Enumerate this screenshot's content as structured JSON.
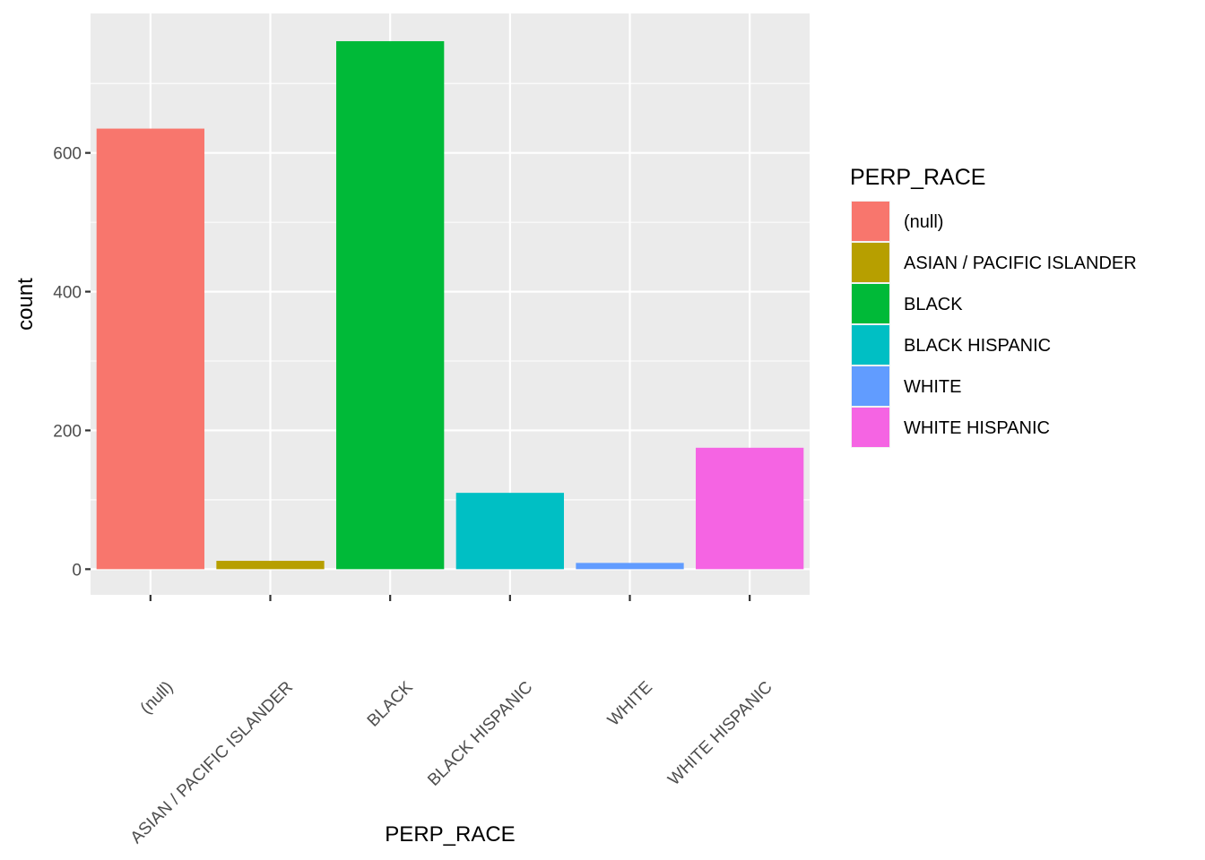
{
  "chart_data": {
    "type": "bar",
    "title": "",
    "xlabel": "PERP_RACE",
    "ylabel": "count",
    "categories": [
      "(null)",
      "ASIAN / PACIFIC ISLANDER",
      "BLACK",
      "BLACK HISPANIC",
      "WHITE",
      "WHITE HISPANIC"
    ],
    "values": [
      635,
      12,
      761,
      110,
      9,
      175
    ],
    "colors": [
      "#F8766D",
      "#B79F00",
      "#00BA38",
      "#00BFC4",
      "#619CFF",
      "#F564E3"
    ],
    "ylim": [
      -37,
      801
    ],
    "yticks": [
      0,
      200,
      400,
      600
    ],
    "grid": true,
    "panel_background": "#EBEBEB",
    "legend": {
      "title": "PERP_RACE",
      "position": "right",
      "entries": [
        "(null)",
        "ASIAN / PACIFIC ISLANDER",
        "BLACK",
        "BLACK HISPANIC",
        "WHITE",
        "WHITE HISPANIC"
      ]
    }
  }
}
